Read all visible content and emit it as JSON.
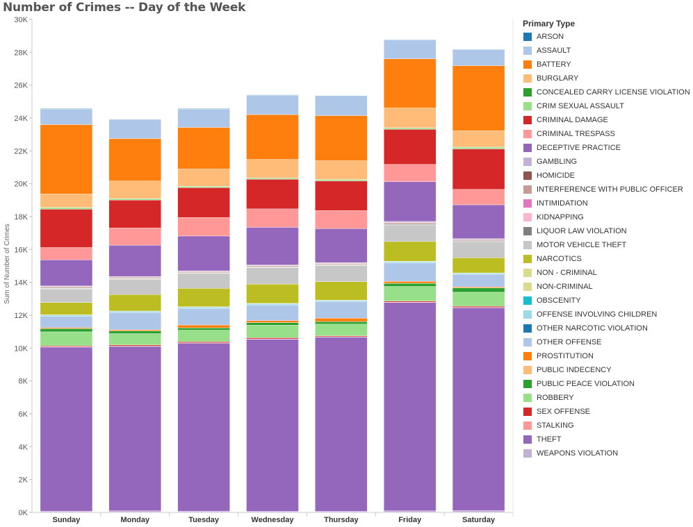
{
  "chart_data": {
    "type": "bar",
    "stacked": true,
    "title": "Number of Crimes -- Day of the Week",
    "xlabel": "",
    "ylabel": "Sum of Number of Crimes",
    "ylim": [
      0,
      30000
    ],
    "y_ticks": [
      "0K",
      "2K",
      "4K",
      "6K",
      "8K",
      "10K",
      "12K",
      "14K",
      "16K",
      "18K",
      "20K",
      "22K",
      "24K",
      "26K",
      "28K",
      "30K"
    ],
    "grid": "vertical separators between days",
    "legend_position": "right",
    "legend_title": "Primary Type",
    "categories": [
      "Sunday",
      "Monday",
      "Tuesday",
      "Wednesday",
      "Thursday",
      "Friday",
      "Saturday"
    ],
    "series": [
      {
        "name": "ARSON",
        "color": "#1f77b4",
        "values": [
          30,
          30,
          30,
          30,
          30,
          30,
          30
        ]
      },
      {
        "name": "ASSAULT",
        "color": "#aec7e8",
        "values": [
          950,
          1150,
          1120,
          1170,
          1180,
          1140,
          960
        ]
      },
      {
        "name": "BATTERY",
        "color": "#ff7f0e",
        "values": [
          4220,
          2580,
          2530,
          2730,
          2750,
          2990,
          3960
        ]
      },
      {
        "name": "BURGLARY",
        "color": "#ffbb78",
        "values": [
          820,
          1070,
          1050,
          1120,
          1140,
          1200,
          1000
        ]
      },
      {
        "name": "CONCEALED CARRY LICENSE VIOLATION",
        "color": "#2ca02c",
        "values": [
          10,
          10,
          10,
          10,
          10,
          10,
          10
        ]
      },
      {
        "name": "CRIM SEXUAL ASSAULT",
        "color": "#98df8a",
        "values": [
          100,
          80,
          80,
          80,
          80,
          90,
          100
        ]
      },
      {
        "name": "CRIMINAL DAMAGE",
        "color": "#d62728",
        "values": [
          2330,
          1700,
          1810,
          1800,
          1800,
          2130,
          2460
        ]
      },
      {
        "name": "CRIMINAL TRESPASS",
        "color": "#ff9896",
        "values": [
          750,
          1050,
          1130,
          1120,
          1100,
          1050,
          940
        ]
      },
      {
        "name": "DECEPTIVE PRACTICE",
        "color": "#9467bd",
        "values": [
          1590,
          1910,
          2120,
          2290,
          2070,
          2420,
          2060
        ]
      },
      {
        "name": "GAMBLING",
        "color": "#c5b0d5",
        "values": [
          30,
          20,
          20,
          20,
          30,
          60,
          40
        ]
      },
      {
        "name": "HOMICIDE",
        "color": "#8c564b",
        "values": [
          20,
          20,
          20,
          20,
          20,
          20,
          20
        ]
      },
      {
        "name": "INTERFERENCE WITH PUBLIC OFFICER",
        "color": "#c49c94",
        "values": [
          80,
          70,
          70,
          70,
          70,
          80,
          70
        ]
      },
      {
        "name": "INTIMIDATION",
        "color": "#e377c2",
        "values": [
          5,
          5,
          5,
          5,
          5,
          5,
          5
        ]
      },
      {
        "name": "KIDNAPPING",
        "color": "#f7b6d2",
        "values": [
          20,
          20,
          20,
          20,
          20,
          20,
          20
        ]
      },
      {
        "name": "LIQUOR LAW VIOLATION",
        "color": "#7f7f7f",
        "values": [
          30,
          20,
          20,
          20,
          30,
          40,
          40
        ]
      },
      {
        "name": "MOTOR VEHICLE THEFT",
        "color": "#c7c7c7",
        "values": [
          820,
          940,
          910,
          1010,
          980,
          1000,
          970
        ]
      },
      {
        "name": "NARCOTICS",
        "color": "#bcbd22",
        "values": [
          750,
          1000,
          1120,
          1170,
          1130,
          1200,
          920
        ]
      },
      {
        "name": "NON - CRIMINAL",
        "color": "#dbdb8d",
        "values": [
          5,
          5,
          5,
          5,
          5,
          5,
          5
        ]
      },
      {
        "name": "NON-CRIMINAL",
        "color": "#dbdb8d",
        "values": [
          5,
          5,
          5,
          5,
          5,
          5,
          5
        ]
      },
      {
        "name": "OBSCENITY",
        "color": "#17becf",
        "values": [
          5,
          5,
          5,
          5,
          5,
          5,
          5
        ]
      },
      {
        "name": "OFFENSE INVOLVING CHILDREN",
        "color": "#9edae5",
        "values": [
          80,
          80,
          80,
          80,
          80,
          80,
          70
        ]
      },
      {
        "name": "OTHER NARCOTIC VIOLATION",
        "color": "#1f77b4",
        "values": [
          5,
          5,
          5,
          5,
          5,
          5,
          5
        ]
      },
      {
        "name": "OTHER OFFENSE",
        "color": "#aec7e8",
        "values": [
          680,
          1040,
          1010,
          950,
          990,
          1120,
          760
        ]
      },
      {
        "name": "PROSTITUTION",
        "color": "#ff7f0e",
        "values": [
          60,
          70,
          170,
          120,
          210,
          120,
          60
        ]
      },
      {
        "name": "PUBLIC INDECENCY",
        "color": "#ffbb78",
        "values": [
          5,
          5,
          5,
          5,
          5,
          5,
          5
        ]
      },
      {
        "name": "PUBLIC PEACE VIOLATION",
        "color": "#2ca02c",
        "values": [
          190,
          160,
          140,
          150,
          150,
          190,
          260
        ]
      },
      {
        "name": "ROBBERY",
        "color": "#98df8a",
        "values": [
          850,
          690,
          700,
          770,
          710,
          890,
          850
        ]
      },
      {
        "name": "SEX OFFENSE",
        "color": "#d62728",
        "values": [
          60,
          70,
          70,
          70,
          60,
          70,
          70
        ]
      },
      {
        "name": "STALKING",
        "color": "#ff9896",
        "values": [
          20,
          20,
          20,
          20,
          20,
          20,
          20
        ]
      },
      {
        "name": "THEFT",
        "color": "#9467bd",
        "values": [
          9980,
          10000,
          10220,
          10470,
          10600,
          12670,
          12350
        ]
      },
      {
        "name": "WEAPONS VIOLATION",
        "color": "#c5b0d5",
        "values": [
          80,
          100,
          80,
          70,
          70,
          100,
          110
        ]
      }
    ]
  }
}
